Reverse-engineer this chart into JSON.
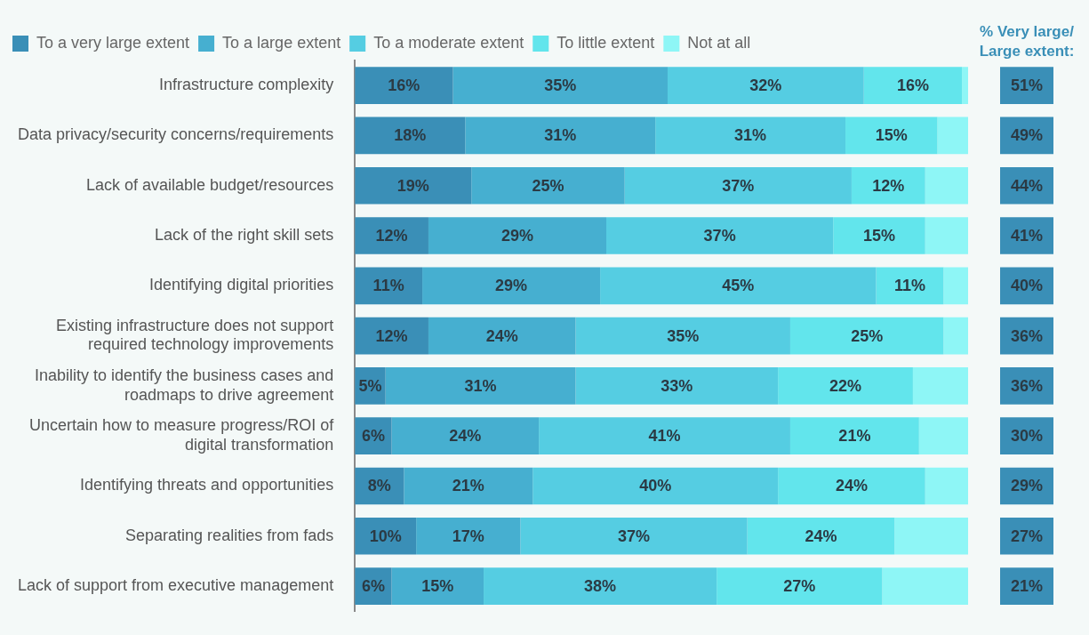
{
  "chart_data": {
    "type": "bar",
    "orientation": "horizontal",
    "stacked": true,
    "xlim": [
      0,
      100
    ],
    "tick_labels": "y",
    "grid": false,
    "legend": "top",
    "categories": [
      "Infrastructure complexity",
      "Data privacy/security concerns/requirements",
      "Lack of available budget/resources",
      "Lack of the right skill sets",
      "Identifying digital priorities",
      "Existing infrastructure does not support required technology improvements",
      "Inability to identify the business cases and roadmaps to drive agreement",
      "Uncertain how to measure progress/ROI of digital transformation",
      "Identifying threats and opportunities",
      "Separating realities from fads",
      "Lack of support from executive management"
    ],
    "series": [
      {
        "name": "To a very large extent",
        "color": "#3a8fb7",
        "values": [
          16,
          18,
          19,
          12,
          11,
          12,
          5,
          6,
          8,
          10,
          6
        ],
        "value_labels": [
          "16%",
          "18%",
          "19%",
          "12%",
          "11%",
          "12%",
          "5%",
          "6%",
          "8%",
          "10%",
          "6%"
        ]
      },
      {
        "name": "To a large extent",
        "color": "#46afd0",
        "values": [
          35,
          31,
          25,
          29,
          29,
          24,
          31,
          24,
          21,
          17,
          15
        ],
        "value_labels": [
          "35%",
          "31%",
          "25%",
          "29%",
          "29%",
          "24%",
          "31%",
          "24%",
          "21%",
          "17%",
          "15%"
        ]
      },
      {
        "name": "To a moderate extent",
        "color": "#55cde2",
        "values": [
          32,
          31,
          37,
          37,
          45,
          35,
          33,
          41,
          40,
          37,
          38
        ],
        "value_labels": [
          "32%",
          "31%",
          "37%",
          "37%",
          "45%",
          "35%",
          "33%",
          "41%",
          "40%",
          "37%",
          "38%"
        ]
      },
      {
        "name": "To little extent",
        "color": "#62e5ec",
        "values": [
          16,
          15,
          12,
          15,
          11,
          25,
          22,
          21,
          24,
          24,
          27
        ],
        "value_labels": [
          "16%",
          "15%",
          "12%",
          "15%",
          "11%",
          "25%",
          "22%",
          "21%",
          "24%",
          "24%",
          "27%"
        ]
      },
      {
        "name": "Not at all",
        "color": "#8ef6f6",
        "values": [
          1,
          5,
          7,
          7,
          4,
          4,
          9,
          8,
          7,
          12,
          14
        ]
      }
    ],
    "annotations": [
      "% Very large/ Large extent:",
      "51%",
      "49%",
      "44%",
      "41%",
      "40%",
      "36%",
      "36%",
      "30%",
      "29%",
      "27%",
      "21%"
    ]
  }
}
